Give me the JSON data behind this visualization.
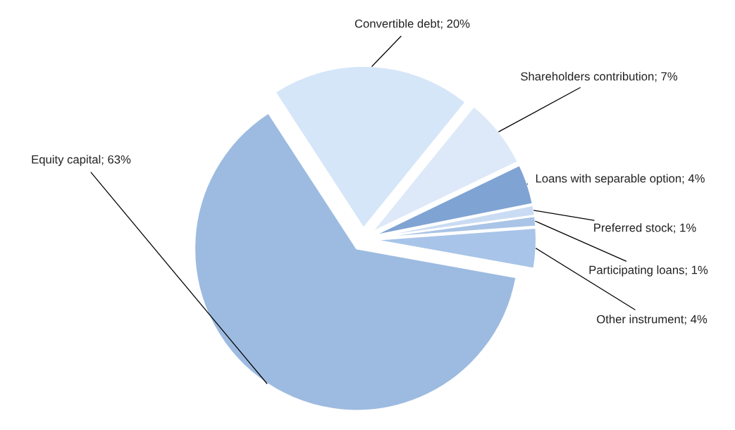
{
  "chart_data": {
    "type": "pie",
    "categories": [
      "Convertible debt",
      "Shareholders contribution",
      "Loans with separable option",
      "Preferred stock",
      "Participating loans",
      "Other instrument",
      "Equity capital"
    ],
    "values": [
      20,
      7,
      4,
      1,
      1,
      4,
      63
    ],
    "value_labels": [
      "20%",
      "7%",
      "4%",
      "1%",
      "1%",
      "4%",
      "63%"
    ],
    "colors": [
      "#d6e6f9",
      "#dde9f8",
      "#7fa3d3",
      "#c9dcf3",
      "#a9c4e6",
      "#a8c4e8",
      "#9dbbe0"
    ],
    "legend": false
  }
}
